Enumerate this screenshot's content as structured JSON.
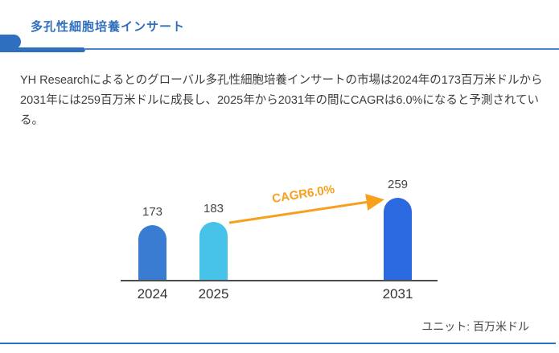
{
  "header": {
    "title": "多孔性細胞培養インサート"
  },
  "summary": {
    "text": "YH Researchによるとのグローバル多孔性細胞培養インサートの市場は2024年の173百万米ドルから2031年には259百万米ドルに成長し、2025年から2031年の間にCAGRは6.0%になると予測されている。"
  },
  "chart_data": {
    "type": "bar",
    "title": "",
    "xlabel": "",
    "ylabel": "",
    "categories": [
      "2024",
      "2025",
      "2031"
    ],
    "values": [
      173,
      183,
      259
    ],
    "bar_colors": [
      "#3b7cd3",
      "#47c2e8",
      "#2a69e0"
    ],
    "annotation": "CAGR6.0%",
    "unit_label": "ユニット: 百万米ドル",
    "ylim": [
      0,
      280
    ],
    "grid": false,
    "legend": false
  },
  "colors": {
    "accent_blue": "#2e6fc0",
    "title_blue": "#2f6fbe",
    "thin_line_blue": "#4a84cd",
    "arrow_orange": "#f7a01e",
    "text_dark": "#3d3d3d",
    "axis_gray": "#4c4c4c"
  }
}
